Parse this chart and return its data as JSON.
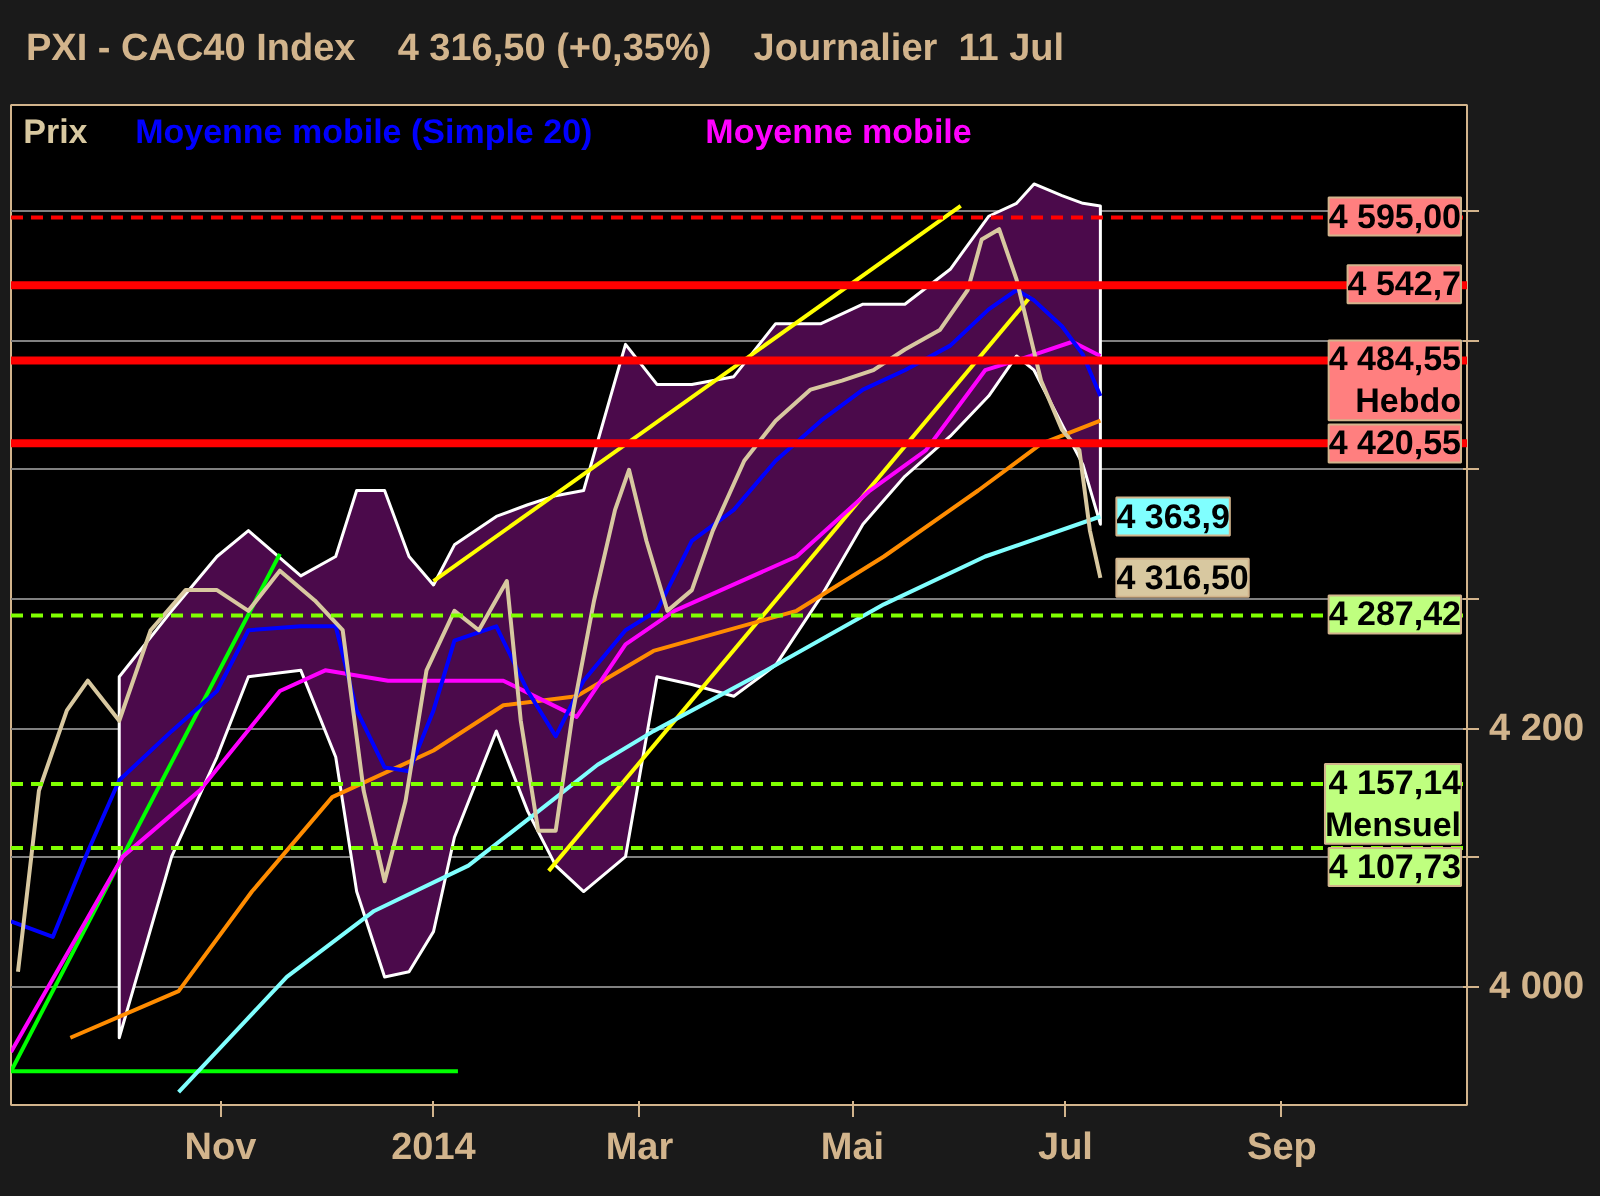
{
  "chart_data": {
    "type": "line",
    "title": "PXI - CAC40 Index    4 316,50 (+0,35%)    Journalier  11 Jul",
    "xlim": [
      "2013-09-02",
      "2014-10-24"
    ],
    "xticks": [
      {
        "value": "2013-11-01",
        "label": "Nov"
      },
      {
        "value": "2014-01-01",
        "label": "2014"
      },
      {
        "value": "2014-03-01",
        "label": "Mar"
      },
      {
        "value": "2014-05-01",
        "label": "Mai"
      },
      {
        "value": "2014-07-01",
        "label": "Jul"
      },
      {
        "value": "2014-09-01",
        "label": "Sep"
      }
    ],
    "ylim": [
      3909,
      4682
    ],
    "yticks": [
      {
        "value": 4000,
        "label": "4 000"
      },
      {
        "value": 4100,
        "label": null
      },
      {
        "value": 4200,
        "label": "4 200"
      },
      {
        "value": 4300,
        "label": null
      },
      {
        "value": 4400,
        "label": null
      },
      {
        "value": 4500,
        "label": null
      },
      {
        "value": 4600,
        "label": null
      }
    ],
    "grid": "y",
    "legend": "top left",
    "series": [
      {
        "name": "Prix",
        "color": "#d8c8a0",
        "x": [
          "2013-09-04",
          "2013-09-10",
          "2013-09-18",
          "2013-09-24",
          "2013-10-03",
          "2013-10-12",
          "2013-10-22",
          "2013-10-31",
          "2013-11-09",
          "2013-11-18",
          "2013-11-28",
          "2013-12-06",
          "2013-12-12",
          "2013-12-18",
          "2013-12-24",
          "2013-12-30",
          "2014-01-07",
          "2014-01-14",
          "2014-01-22",
          "2014-01-26",
          "2014-01-31",
          "2014-02-05",
          "2014-02-10",
          "2014-02-16",
          "2014-02-22",
          "2014-02-26",
          "2014-03-03",
          "2014-03-09",
          "2014-03-16",
          "2014-03-22",
          "2014-03-31",
          "2014-04-09",
          "2014-04-19",
          "2014-04-28",
          "2014-05-07",
          "2014-05-16",
          "2014-05-26",
          "2014-06-03",
          "2014-06-07",
          "2014-06-12",
          "2014-06-17",
          "2014-06-24",
          "2014-06-30",
          "2014-07-05",
          "2014-07-08",
          "2014-07-11"
        ],
        "values": [
          4012,
          4152,
          4214,
          4237,
          4206,
          4276,
          4307,
          4307,
          4291,
          4322,
          4299,
          4276,
          4152,
          4082,
          4144,
          4245,
          4291,
          4276,
          4314,
          4206,
          4121,
          4121,
          4214,
          4299,
          4369,
          4400,
          4345,
          4291,
          4307,
          4353,
          4407,
          4438,
          4462,
          4469,
          4477,
          4493,
          4508,
          4539,
          4578,
          4586,
          4547,
          4469,
          4431,
          4415,
          4353,
          4316.5
        ],
        "value_labels": [
          null,
          null,
          null,
          null,
          null,
          null,
          null,
          null,
          null,
          null,
          null,
          null,
          null,
          null,
          null,
          null,
          null,
          null,
          null,
          null,
          null,
          null,
          null,
          null,
          null,
          null,
          null,
          null,
          null,
          null,
          null,
          null,
          null,
          null,
          null,
          null,
          null,
          null,
          null,
          null,
          null,
          null,
          null,
          null,
          null,
          "4 316,50"
        ]
      },
      {
        "name": "Moyenne mobile (Simple 20)",
        "color": "#0000ff",
        "x": [
          "2013-09-02",
          "2013-09-14",
          "2013-09-24",
          "2013-10-03",
          "2013-10-18",
          "2013-10-31",
          "2013-11-09",
          "2013-11-24",
          "2013-12-04",
          "2013-12-10",
          "2013-12-18",
          "2013-12-25",
          "2014-01-01",
          "2014-01-07",
          "2014-01-19",
          "2014-01-28",
          "2014-02-05",
          "2014-02-13",
          "2014-02-25",
          "2014-03-06",
          "2014-03-16",
          "2014-03-28",
          "2014-04-09",
          "2014-04-22",
          "2014-05-04",
          "2014-05-16",
          "2014-05-29",
          "2014-06-09",
          "2014-06-17",
          "2014-06-22",
          "2014-06-30",
          "2014-07-06",
          "2014-07-11"
        ],
        "values": [
          4051,
          4039,
          4105,
          4160,
          4198,
          4229,
          4276,
          4279,
          4279,
          4214,
          4170,
          4167,
          4214,
          4268,
          4279,
          4229,
          4194,
          4237,
          4276,
          4291,
          4345,
          4369,
          4407,
          4438,
          4462,
          4477,
          4496,
          4524,
          4539,
          4531,
          4511,
          4489,
          4457
        ],
        "upper": [
          null,
          null,
          null,
          4240,
          4291,
          4333,
          4353,
          4318,
          4333,
          4384,
          4384,
          4333,
          4311,
          4342,
          4364,
          4373,
          4380,
          4384,
          4497,
          4466,
          4466,
          4472,
          4513,
          4513,
          4528,
          4528,
          4555,
          4596,
          4606,
          4621,
          4612,
          4606,
          4604
        ],
        "lower": [
          null,
          null,
          null,
          3961,
          4101,
          4178,
          4240,
          4245,
          4178,
          4074,
          4008,
          4012,
          4043,
          4116,
          4198,
          4136,
          4094,
          4074,
          4101,
          4240,
          4234,
          4225,
          4249,
          4302,
          4358,
          4395,
          4426,
          4457,
          4488,
          4477,
          4435,
          4404,
          4358
        ]
      },
      {
        "name": "Moyenne mobile",
        "color": "#ff00ff",
        "x": [
          "2013-09-02",
          "2013-10-04",
          "2013-10-26",
          "2013-11-18",
          "2013-12-01",
          "2013-12-19",
          "2014-01-07",
          "2014-01-21",
          "2014-02-11",
          "2014-02-25",
          "2014-03-11",
          "2014-04-15",
          "2014-05-06",
          "2014-05-22",
          "2014-06-08",
          "2014-06-21",
          "2014-07-03",
          "2014-07-11"
        ],
        "values": [
          3950,
          4101,
          4152,
          4229,
          4245,
          4237,
          4237,
          4237,
          4209,
          4265,
          4291,
          4333,
          4384,
          4415,
          4477,
          4488,
          4499,
          4488
        ]
      },
      {
        "color": "#ff8c00",
        "x": [
          "2013-09-19",
          "2013-10-20",
          "2013-11-10",
          "2013-12-03",
          "2014-01-01",
          "2014-01-21",
          "2014-02-11",
          "2014-03-05",
          "2014-04-15",
          "2014-05-10",
          "2014-06-06",
          "2014-06-24",
          "2014-07-11"
        ],
        "values": [
          3961,
          3997,
          4074,
          4147,
          4183,
          4218,
          4225,
          4260,
          4291,
          4333,
          4384,
          4420,
          4438
        ]
      },
      {
        "color": "#80ffff",
        "x": [
          "2013-10-20",
          "2013-11-20",
          "2013-12-15",
          "2014-01-11",
          "2014-01-31",
          "2014-02-17",
          "2014-03-05",
          "2014-04-03",
          "2014-05-10",
          "2014-06-08",
          "2014-07-11"
        ],
        "values": [
          3919,
          4008,
          4059,
          4094,
          4136,
          4172,
          4198,
          4240,
          4296,
          4333,
          4363.9
        ],
        "value_labels": [
          null,
          null,
          null,
          null,
          null,
          null,
          null,
          null,
          null,
          null,
          "4 363,9"
        ]
      },
      {
        "color": "#ffff00",
        "x": [
          "2014-01-01",
          "2014-06-01"
        ],
        "values": [
          4314,
          4604
        ]
      },
      {
        "color": "#ffff00",
        "x": [
          "2014-02-03",
          "2014-06-21"
        ],
        "values": [
          4090,
          4534
        ]
      },
      {
        "color": "#00ff00",
        "x": [
          "2013-09-02",
          "2013-11-18"
        ],
        "values": [
          3935,
          4335
        ]
      },
      {
        "color": "#00ff00",
        "x": [
          "2013-09-02",
          "2014-01-08"
        ],
        "values": [
          3935,
          3935
        ]
      }
    ],
    "ref_lines": [
      {
        "axis": "y",
        "value": 4595,
        "label": "4 595,00",
        "color": "#ff0000",
        "line_style": "dashed"
      },
      {
        "axis": "y",
        "value": 4542.7,
        "label": "4 542,7",
        "color": "#ff0000"
      },
      {
        "axis": "y",
        "value": 4484.55,
        "label": "4 484,55\nHebdo",
        "color": "#ff0000"
      },
      {
        "axis": "y",
        "value": 4420.55,
        "label": "4 420,55",
        "color": "#ff0000"
      },
      {
        "axis": "y",
        "value": 4287.42,
        "label": "4 287,42",
        "color": "#80ff00",
        "line_style": "dashed"
      },
      {
        "axis": "y",
        "value": 4157.14,
        "label": "4 157,14\nMensuel",
        "color": "#80ff00",
        "line_style": "dashed"
      },
      {
        "axis": "y",
        "value": 4107.73,
        "label": "4 107,73",
        "color": "#80ff00",
        "line_style": "dashed"
      }
    ]
  }
}
